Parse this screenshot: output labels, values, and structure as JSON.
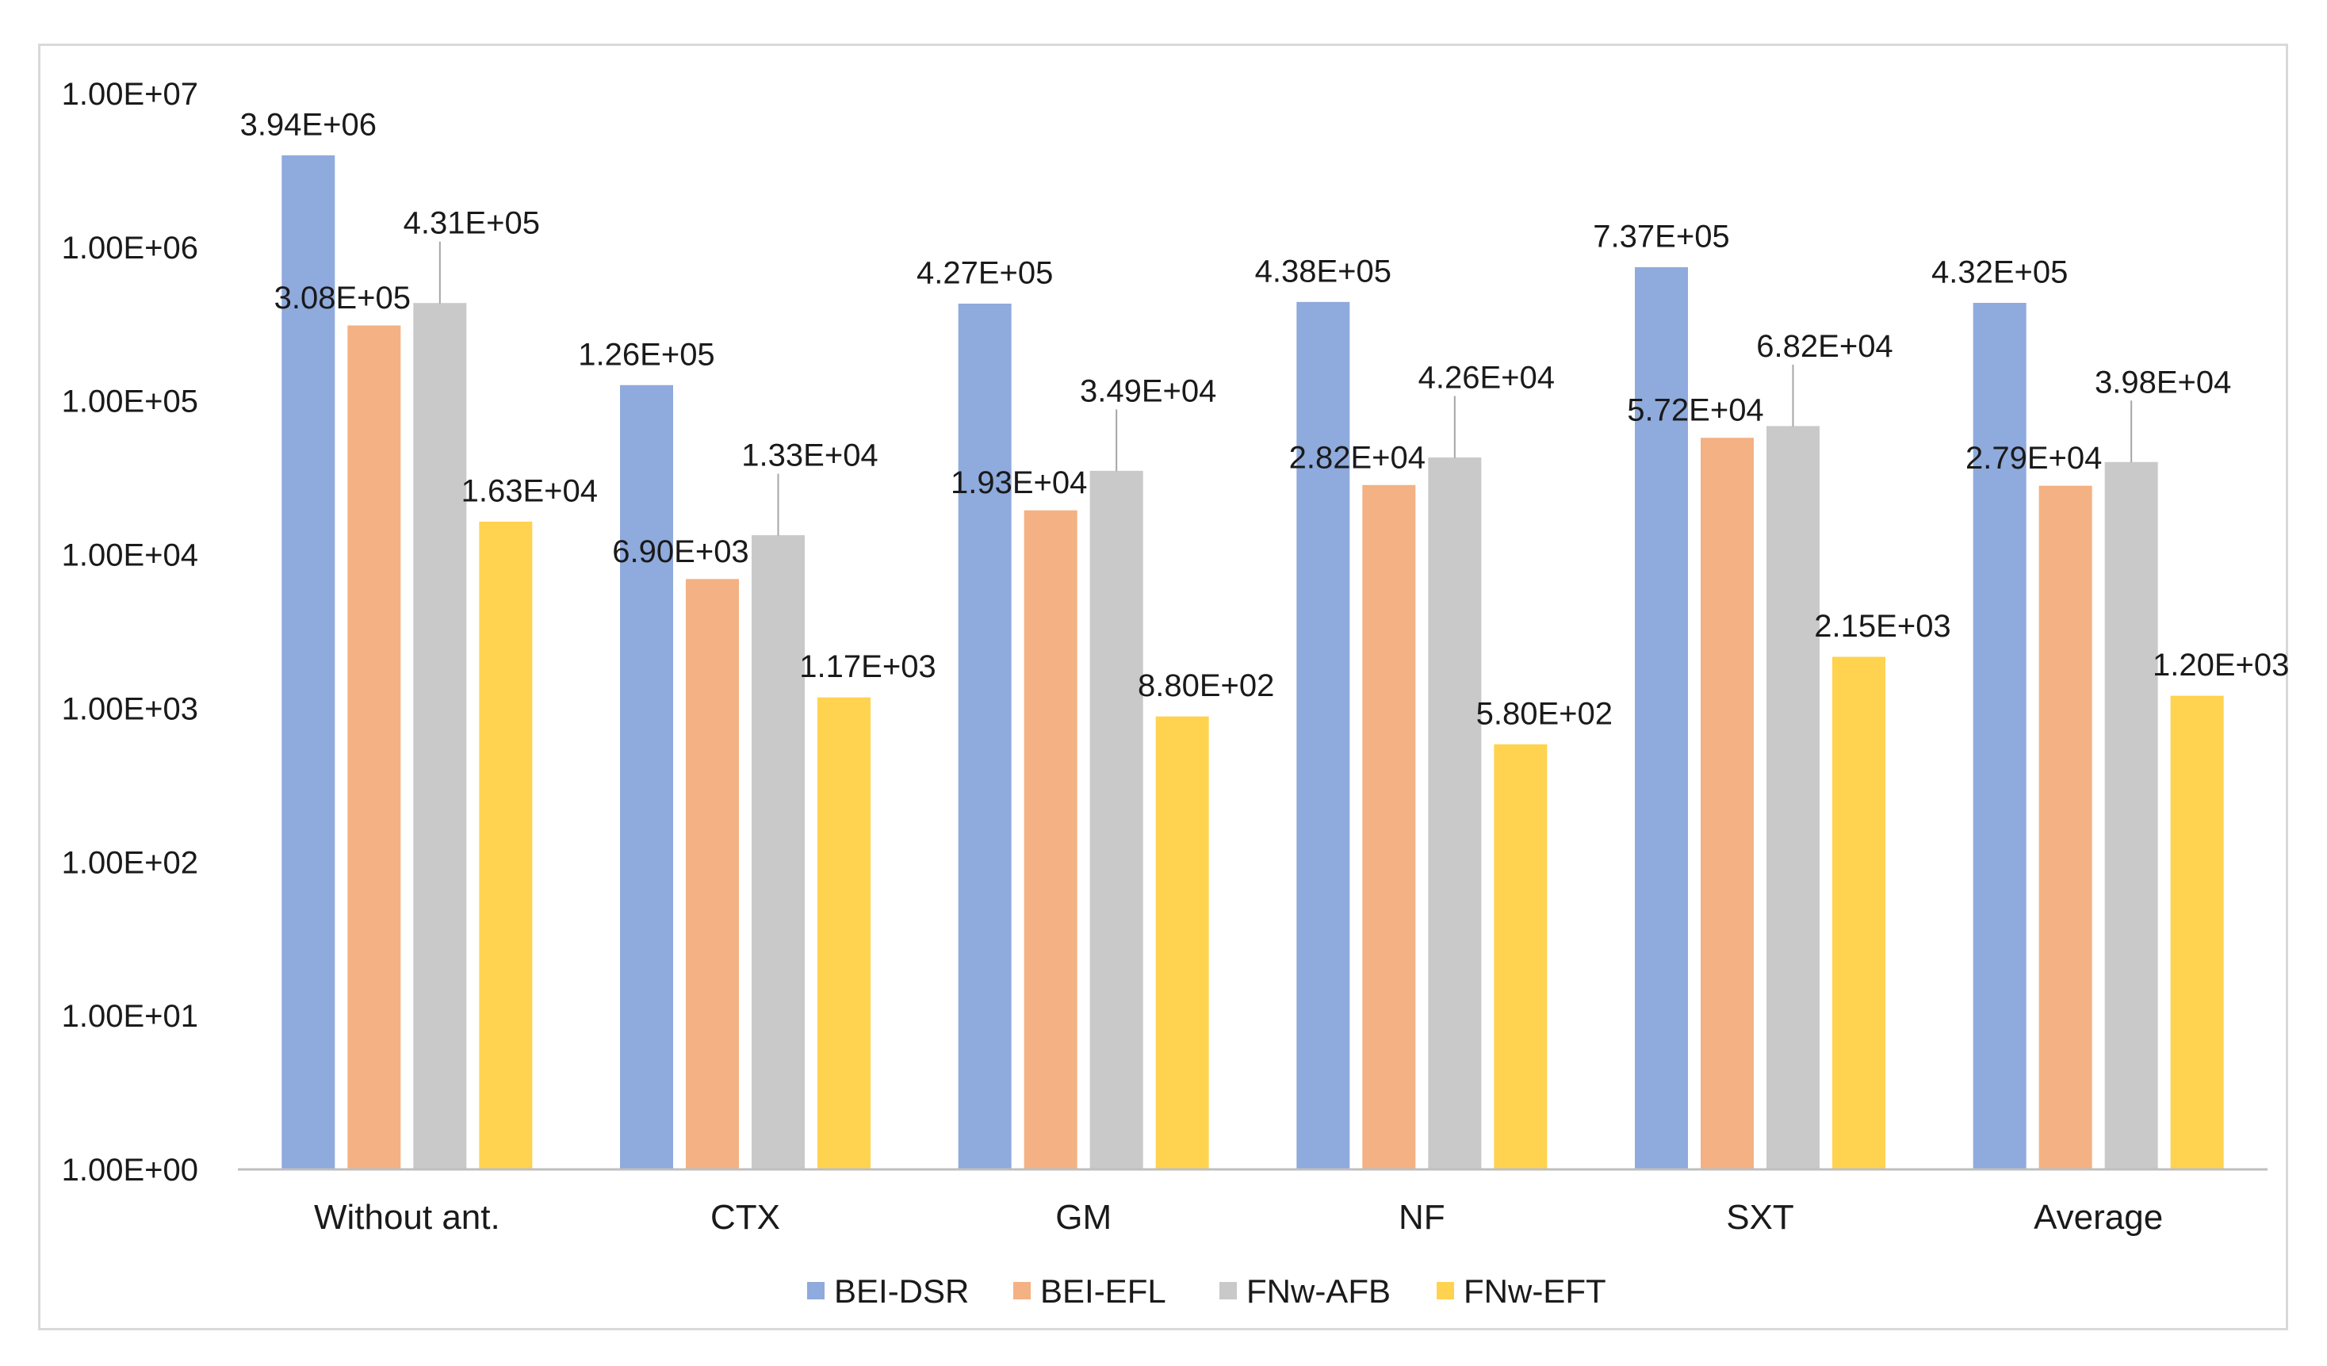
{
  "chart_data": {
    "type": "bar",
    "scale": "log10",
    "categories": [
      "Without ant.",
      "CTX",
      "GM",
      "NF",
      "SXT",
      "Average"
    ],
    "series": [
      {
        "name": "BEI-DSR",
        "color": "#8faadc",
        "values": [
          3940000,
          126000,
          427000,
          438000,
          737000,
          432000
        ],
        "labels": [
          "3.94E+06",
          "1.26E+05",
          "4.27E+05",
          "4.38E+05",
          "7.37E+05",
          "4.32E+05"
        ]
      },
      {
        "name": "BEI-EFL",
        "color": "#f4b183",
        "values": [
          308000,
          6900,
          19300,
          28200,
          57200,
          27900
        ],
        "labels": [
          "3.08E+05",
          "6.90E+03",
          "1.93E+04",
          "2.82E+04",
          "5.72E+04",
          "2.79E+04"
        ]
      },
      {
        "name": "FNw-AFB",
        "color": "#c9c9c9",
        "values": [
          431000,
          13300,
          34900,
          42600,
          68200,
          39800
        ],
        "labels": [
          "4.31E+05",
          "1.33E+04",
          "3.49E+04",
          "4.26E+04",
          "6.82E+04",
          "3.98E+04"
        ]
      },
      {
        "name": "FNw-EFT",
        "color": "#ffd34f",
        "values": [
          16300,
          1170,
          880,
          580,
          2150,
          1200
        ],
        "labels": [
          "1.63E+04",
          "1.17E+03",
          "8.80E+02",
          "5.80E+02",
          "2.15E+03",
          "1.20E+03"
        ]
      }
    ],
    "y_ticks": [
      1,
      10,
      100,
      1000,
      10000,
      100000,
      1000000,
      10000000
    ],
    "y_tick_labels": [
      "1.00E+00",
      "1.00E+01",
      "1.00E+02",
      "1.00E+03",
      "1.00E+04",
      "1.00E+05",
      "1.00E+06",
      "1.00E+07"
    ],
    "ylim": [
      1,
      10000000
    ],
    "grid": false,
    "legend": "bottom-center",
    "title": "",
    "xlabel": "",
    "ylabel": ""
  }
}
